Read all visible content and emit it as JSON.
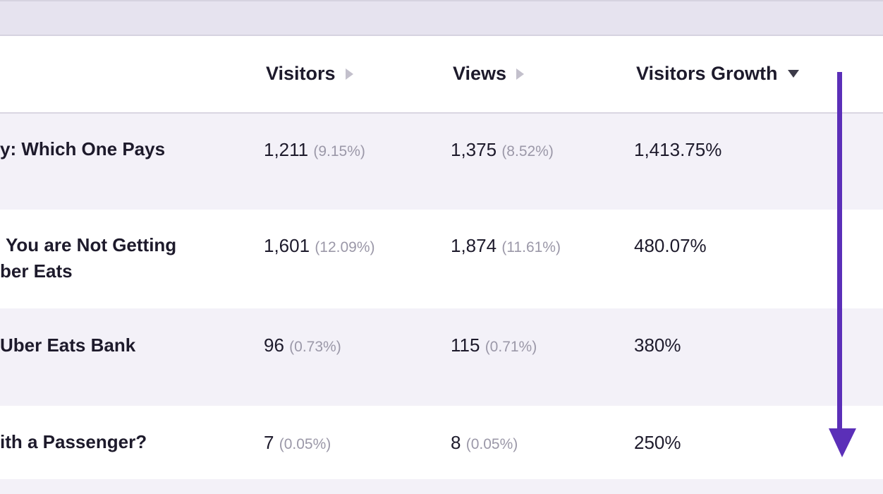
{
  "header": {
    "columns": [
      {
        "label": "Visitors",
        "sort": "none"
      },
      {
        "label": "Views",
        "sort": "none"
      },
      {
        "label": "Visitors Growth",
        "sort": "descending"
      }
    ]
  },
  "rows": [
    {
      "title_lines": [
        "y: Which One Pays"
      ],
      "visitors": "1,211",
      "visitors_pct": "(9.15%)",
      "views": "1,375",
      "views_pct": "(8.52%)",
      "growth": "1,413.75%"
    },
    {
      "title_lines": [
        "You are Not Getting",
        "ber Eats"
      ],
      "visitors": "1,601",
      "visitors_pct": "(12.09%)",
      "views": "1,874",
      "views_pct": "(11.61%)",
      "growth": "480.07%"
    },
    {
      "title_lines": [
        "Uber Eats Bank"
      ],
      "visitors": "96",
      "visitors_pct": "(0.73%)",
      "views": "115",
      "views_pct": "(0.71%)",
      "growth": "380%"
    },
    {
      "title_lines": [
        "ith a Passenger?"
      ],
      "visitors": "7",
      "visitors_pct": "(0.05%)",
      "views": "8",
      "views_pct": "(0.05%)",
      "growth": "250%"
    }
  ],
  "annotation": {
    "arrow_color": "#5b2fb8",
    "direction": "down"
  }
}
